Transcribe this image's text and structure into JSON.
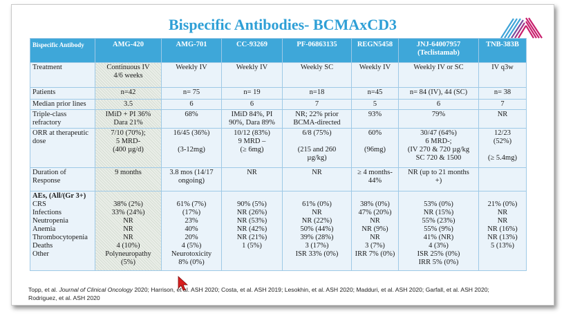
{
  "title": "Bispecific Antibodies- BCMAxCD3",
  "table": {
    "headers": [
      {
        "lines": [
          "Bispecific Antibody"
        ]
      },
      {
        "lines": [
          "AMG-420"
        ]
      },
      {
        "lines": [
          "AMG-701"
        ]
      },
      {
        "lines": [
          "CC-93269"
        ]
      },
      {
        "lines": [
          "PF-06863135"
        ]
      },
      {
        "lines": [
          "REGN5458"
        ]
      },
      {
        "lines": [
          "JNJ-64007957",
          "(Teclistamab)"
        ]
      },
      {
        "lines": [
          "TNB-383B"
        ]
      }
    ],
    "treatment": {
      "label": "Treatment",
      "cells": [
        [
          "Continuous IV",
          "4/6 weeks"
        ],
        [
          "Weekly IV"
        ],
        [
          "Weekly IV"
        ],
        [
          "Weekly SC"
        ],
        [
          "Weekly IV"
        ],
        [
          "Weekly IV or SC"
        ],
        [
          "IV q3w"
        ]
      ]
    },
    "patients": {
      "label": "Patients",
      "cells": [
        [
          "n=42"
        ],
        [
          "n= 75"
        ],
        [
          "n= 19"
        ],
        [
          "n=18"
        ],
        [
          "n=45"
        ],
        [
          "n= 84 (IV), 44 (SC)"
        ],
        [
          "n= 38"
        ]
      ]
    },
    "prior_lines": {
      "label": "Median prior lines",
      "cells": [
        [
          "3.5"
        ],
        [
          "6"
        ],
        [
          "6"
        ],
        [
          "7"
        ],
        [
          "5"
        ],
        [
          "6"
        ],
        [
          "7"
        ]
      ]
    },
    "triple_class": {
      "label_lines": [
        "Triple-class",
        "refractory"
      ],
      "cells": [
        [
          "IMiD + PI 36%",
          "Dara 21%"
        ],
        [
          "68%"
        ],
        [
          "IMiD 84%, PI",
          "90%, Dara 89%"
        ],
        [
          "NR; 22% prior",
          "BCMA-directed"
        ],
        [
          "93%"
        ],
        [
          "79%"
        ],
        [
          "NR"
        ]
      ]
    },
    "orr": {
      "label_lines": [
        "ORR at therapeutic",
        "dose"
      ],
      "cells": [
        [
          "7/10 (70%);",
          "5 MRD-",
          "(400 µg/d)"
        ],
        [
          "16/45 (36%)",
          "",
          "(3-12mg)"
        ],
        [
          "10/12 (83%)",
          "9 MRD –",
          "(≥ 6mg)"
        ],
        [
          "6/8 (75%)",
          "",
          "(215 and 260",
          "µg/kg)"
        ],
        [
          "60%",
          "",
          "(96mg)"
        ],
        [
          "30/47 (64%)",
          "6 MRD-;",
          "(IV 270 & 720 µg/kg",
          "SC 720 & 1500"
        ],
        [
          "12/23",
          "(52%)",
          "",
          "(≥ 5.4mg)"
        ]
      ]
    },
    "duration": {
      "label_lines": [
        "Duration of",
        "Response"
      ],
      "cells": [
        [
          "9 months"
        ],
        [
          "3.8 mos (14/17",
          "ongoing)"
        ],
        [
          "NR"
        ],
        [
          "NR"
        ],
        [
          "≥ 4 months-",
          "44%"
        ],
        [
          "NR (up to 21 months",
          "+)"
        ],
        [
          ""
        ]
      ]
    },
    "aes": {
      "label_header": "AEs,  (All/(Gr 3+)",
      "label_lines": [
        "CRS",
        "Infections",
        "Neutropenia",
        "Anemia",
        "Thrombocytopenia",
        "Deaths",
        "Other"
      ],
      "cells": [
        [
          "",
          "38% (2%)",
          "33% (24%)",
          "NR",
          "NR",
          "NR",
          "4 (10%)",
          "Polyneuropathy",
          "(5%)"
        ],
        [
          "",
          "61% (7%)",
          "(17%)",
          "23%",
          "40%",
          "20%",
          "4 (5%)",
          "Neurotoxicity",
          "8% (0%)"
        ],
        [
          "",
          "90% (5%)",
          "NR (26%)",
          "NR (53%)",
          "NR (42%)",
          "NR (21%)",
          "1 (5%)"
        ],
        [
          "",
          "61% (0%)",
          "NR",
          "NR (22%)",
          "50% (44%)",
          "39% (28%)",
          "3 (17%)",
          "ISR 33% (0%)"
        ],
        [
          "",
          "38% (0%)",
          "47% (20%)",
          "NR",
          "NR (9%)",
          "NR",
          "3 (7%)",
          "IRR 7% (0%)"
        ],
        [
          "",
          "53% (0%)",
          "NR (15%)",
          "55% (23%)",
          "55% (9%)",
          "41% (NR)",
          "4 (3%)",
          "ISR 25% (0%)",
          "IRR 5% (0%)"
        ],
        [
          "",
          "21% (0%)",
          "NR",
          "NR",
          "NR (16%)",
          "NR (13%)",
          "5 (13%)"
        ]
      ]
    }
  },
  "references": {
    "pre": "Topp, et al. ",
    "journal": "Journal of Clinical Oncology",
    "rest": " 2020; Harrison, et al. ASH 2020; Costa, et al. ASH 2019; Lesokhin, et al. ASH 2020; Madduri, et al. ASH 2020; Garfall, et al. ASH 2020;",
    "line2": "Rodriguez, et al. ASH 2020"
  },
  "colors": {
    "title": "#2e9fd6",
    "header_bg": "#3ea7d9",
    "cell_bg": "#eaf3fa",
    "logo_blue": "#3fa4d8",
    "logo_magenta": "#c8206d",
    "cursor": "#d91f1f"
  },
  "icons": {
    "logo": "striped-chevron-logo",
    "cursor": "mouse-pointer-cursor"
  }
}
